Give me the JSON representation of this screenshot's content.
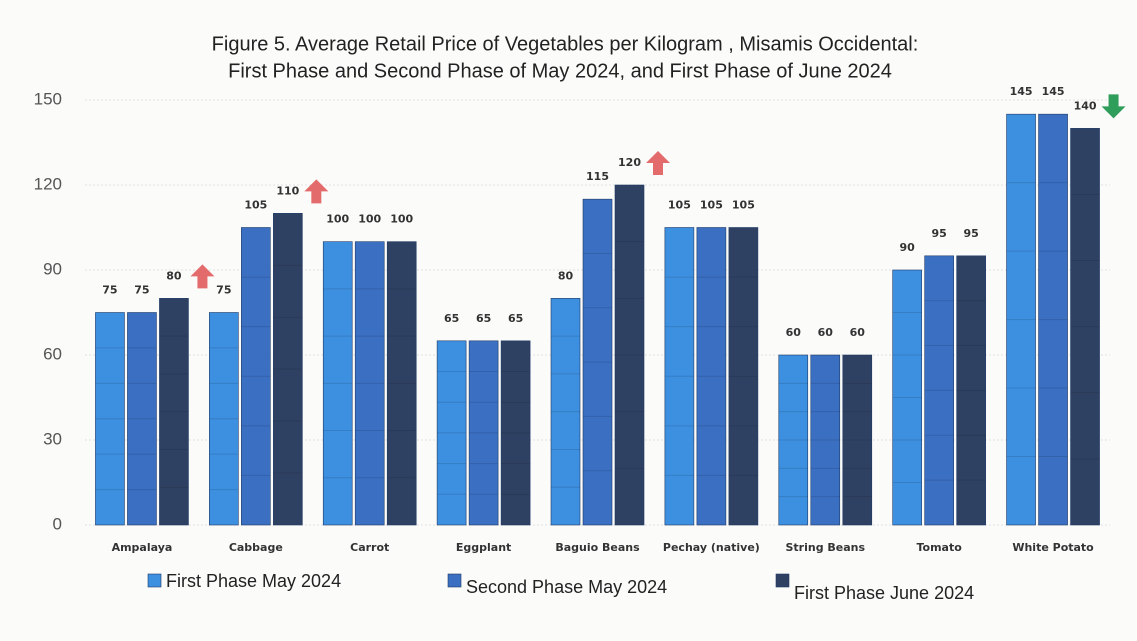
{
  "chart_data": {
    "type": "bar",
    "title": [
      "Figure 5. Average Retail Price of Vegetables per Kilogram , Misamis Occidental:",
      "First Phase and Second Phase of May 2024, and First Phase of June 2024"
    ],
    "categories": [
      "Ampalaya",
      "Cabbage",
      "Carrot",
      "Eggplant",
      "Baguio Beans",
      "Pechay (native)",
      "String Beans",
      "Tomato",
      "White Potato"
    ],
    "series": [
      {
        "name": "First Phase May 2024",
        "color": "#3d8fe0",
        "values": [
          75,
          75,
          100,
          65,
          80,
          105,
          60,
          90,
          145
        ]
      },
      {
        "name": "Second Phase May 2024",
        "color": "#3b6fc2",
        "values": [
          75,
          105,
          100,
          65,
          115,
          105,
          60,
          95,
          145
        ]
      },
      {
        "name": "First Phase June 2024",
        "color": "#2f4163",
        "values": [
          80,
          110,
          100,
          65,
          120,
          105,
          60,
          95,
          140
        ]
      }
    ],
    "ylim": [
      0,
      150
    ],
    "yticks": [
      0,
      30,
      60,
      90,
      120,
      150
    ],
    "grid": true
  }
}
